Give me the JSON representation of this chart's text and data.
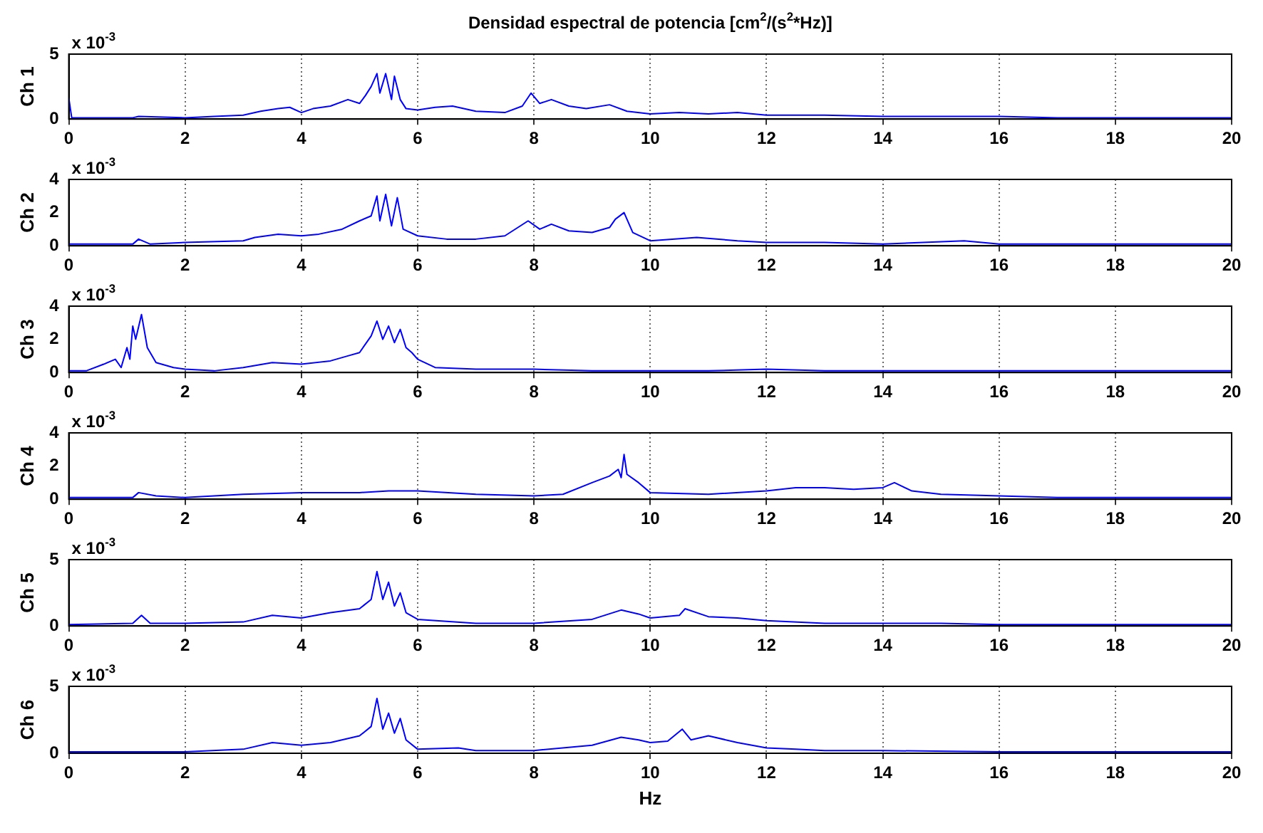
{
  "chart_data": [
    {
      "type": "line",
      "title": "Densidad espectral de potencia [cm$^{2}$/(s$^{2}$*Hz)]",
      "ylabel": "Ch 1",
      "annotations": [
        "x 10$^{-3}$"
      ],
      "color": "#0000ff",
      "xlim": [
        0,
        20
      ],
      "xticks": [
        0,
        2,
        4,
        6,
        8,
        10,
        12,
        14,
        16,
        18,
        20
      ],
      "ylim": [
        0,
        5
      ],
      "yticks": [
        0,
        5
      ],
      "grid": "x",
      "x": [
        0,
        0.05,
        1.1,
        1.2,
        2,
        2.5,
        3,
        3.3,
        3.6,
        3.8,
        4,
        4.2,
        4.5,
        4.8,
        5,
        5.1,
        5.2,
        5.3,
        5.35,
        5.45,
        5.55,
        5.6,
        5.7,
        5.8,
        6,
        6.3,
        6.6,
        7,
        7.5,
        7.8,
        7.95,
        8.1,
        8.3,
        8.6,
        8.9,
        9.3,
        9.6,
        10,
        10.5,
        11,
        11.5,
        12,
        13,
        14,
        15,
        16,
        17,
        18,
        19,
        20
      ],
      "values": [
        1.6,
        0.1,
        0.1,
        0.2,
        0.1,
        0.2,
        0.3,
        0.6,
        0.8,
        0.9,
        0.5,
        0.8,
        1.0,
        1.5,
        1.2,
        1.8,
        2.5,
        3.5,
        2.0,
        3.5,
        1.5,
        3.3,
        1.5,
        0.8,
        0.7,
        0.9,
        1.0,
        0.6,
        0.5,
        1.0,
        2.0,
        1.2,
        1.5,
        1.0,
        0.8,
        1.1,
        0.6,
        0.4,
        0.5,
        0.4,
        0.5,
        0.3,
        0.3,
        0.2,
        0.2,
        0.2,
        0.1,
        0.1,
        0.1,
        0.1
      ]
    },
    {
      "type": "line",
      "ylabel": "Ch 2",
      "annotations": [
        "x 10$^{-3}$"
      ],
      "color": "#0000ff",
      "xlim": [
        0,
        20
      ],
      "xticks": [
        0,
        2,
        4,
        6,
        8,
        10,
        12,
        14,
        16,
        18,
        20
      ],
      "ylim": [
        0,
        4
      ],
      "yticks": [
        0,
        2,
        4
      ],
      "grid": "x",
      "x": [
        0,
        1.1,
        1.2,
        1.4,
        2,
        3,
        3.2,
        3.6,
        4,
        4.3,
        4.7,
        5,
        5.2,
        5.3,
        5.35,
        5.45,
        5.55,
        5.65,
        5.75,
        6,
        6.5,
        7,
        7.5,
        7.9,
        8.1,
        8.3,
        8.6,
        9,
        9.3,
        9.4,
        9.55,
        9.7,
        10,
        10.8,
        11.5,
        12,
        13,
        14,
        15.4,
        15.7,
        16,
        17,
        18,
        20
      ],
      "values": [
        0.1,
        0.1,
        0.4,
        0.1,
        0.2,
        0.3,
        0.5,
        0.7,
        0.6,
        0.7,
        1.0,
        1.5,
        1.8,
        3.0,
        1.5,
        3.1,
        1.2,
        2.9,
        1.0,
        0.6,
        0.4,
        0.4,
        0.6,
        1.5,
        1.0,
        1.3,
        0.9,
        0.8,
        1.1,
        1.6,
        2.0,
        0.8,
        0.3,
        0.5,
        0.3,
        0.2,
        0.2,
        0.1,
        0.3,
        0.2,
        0.1,
        0.1,
        0.1,
        0.1
      ]
    },
    {
      "type": "line",
      "ylabel": "Ch 3",
      "annotations": [
        "x 10$^{-3}$"
      ],
      "color": "#0000ff",
      "xlim": [
        0,
        20
      ],
      "xticks": [
        0,
        2,
        4,
        6,
        8,
        10,
        12,
        14,
        16,
        18,
        20
      ],
      "ylim": [
        0,
        4
      ],
      "yticks": [
        0,
        2,
        4
      ],
      "grid": "x",
      "x": [
        0,
        0.3,
        0.6,
        0.8,
        0.9,
        1.0,
        1.05,
        1.1,
        1.15,
        1.25,
        1.35,
        1.5,
        1.8,
        2,
        2.5,
        3,
        3.5,
        4,
        4.5,
        4.8,
        5,
        5.2,
        5.3,
        5.4,
        5.5,
        5.6,
        5.7,
        5.8,
        5.9,
        6,
        6.3,
        7,
        8,
        9,
        10,
        11,
        12,
        13,
        14,
        16,
        18,
        20
      ],
      "values": [
        0.1,
        0.1,
        0.5,
        0.8,
        0.3,
        1.5,
        0.8,
        2.8,
        2.0,
        3.5,
        1.5,
        0.6,
        0.3,
        0.2,
        0.1,
        0.3,
        0.6,
        0.5,
        0.7,
        1.0,
        1.2,
        2.2,
        3.1,
        2.0,
        2.8,
        1.8,
        2.6,
        1.5,
        1.2,
        0.8,
        0.3,
        0.2,
        0.2,
        0.1,
        0.1,
        0.1,
        0.2,
        0.1,
        0.1,
        0.1,
        0.1,
        0.1
      ]
    },
    {
      "type": "line",
      "ylabel": "Ch 4",
      "annotations": [
        "x 10$^{-3}$"
      ],
      "color": "#0000ff",
      "xlim": [
        0,
        20
      ],
      "xticks": [
        0,
        2,
        4,
        6,
        8,
        10,
        12,
        14,
        16,
        18,
        20
      ],
      "ylim": [
        0,
        4
      ],
      "yticks": [
        0,
        2,
        4
      ],
      "grid": "x",
      "x": [
        0,
        1.1,
        1.2,
        1.5,
        2,
        3,
        4,
        5,
        5.5,
        6,
        7,
        8,
        8.5,
        9,
        9.3,
        9.45,
        9.5,
        9.55,
        9.6,
        9.8,
        10,
        11,
        12,
        12.5,
        13,
        13.5,
        14,
        14.2,
        14.5,
        15,
        16,
        17,
        18,
        19,
        20
      ],
      "values": [
        0.1,
        0.1,
        0.4,
        0.2,
        0.1,
        0.3,
        0.4,
        0.4,
        0.5,
        0.5,
        0.3,
        0.2,
        0.3,
        1.0,
        1.4,
        1.8,
        1.3,
        2.7,
        1.5,
        1.0,
        0.4,
        0.3,
        0.5,
        0.7,
        0.7,
        0.6,
        0.7,
        1.0,
        0.5,
        0.3,
        0.2,
        0.1,
        0.1,
        0.1,
        0.1
      ]
    },
    {
      "type": "line",
      "ylabel": "Ch 5",
      "annotations": [
        "x 10$^{-3}$"
      ],
      "color": "#0000ff",
      "xlim": [
        0,
        20
      ],
      "xticks": [
        0,
        2,
        4,
        6,
        8,
        10,
        12,
        14,
        16,
        18,
        20
      ],
      "ylim": [
        0,
        5
      ],
      "yticks": [
        0,
        5
      ],
      "grid": "x",
      "x": [
        0,
        1.1,
        1.25,
        1.4,
        2,
        3,
        3.5,
        4,
        4.5,
        5,
        5.2,
        5.3,
        5.4,
        5.5,
        5.6,
        5.7,
        5.8,
        6,
        7,
        8,
        9,
        9.5,
        9.8,
        10,
        10.5,
        10.6,
        11,
        11.5,
        12,
        13,
        14,
        15,
        16,
        18,
        20
      ],
      "values": [
        0.1,
        0.2,
        0.8,
        0.2,
        0.2,
        0.3,
        0.8,
        0.6,
        1.0,
        1.3,
        2.0,
        4.1,
        2.0,
        3.3,
        1.5,
        2.5,
        1.0,
        0.5,
        0.2,
        0.2,
        0.5,
        1.2,
        0.9,
        0.6,
        0.8,
        1.3,
        0.7,
        0.6,
        0.4,
        0.2,
        0.2,
        0.2,
        0.1,
        0.1,
        0.1
      ]
    },
    {
      "type": "line",
      "ylabel": "Ch 6",
      "xlabel": "Hz",
      "annotations": [
        "x 10$^{-3}$"
      ],
      "color": "#0000ff",
      "xlim": [
        0,
        20
      ],
      "xticks": [
        0,
        2,
        4,
        6,
        8,
        10,
        12,
        14,
        16,
        18,
        20
      ],
      "ylim": [
        0,
        5
      ],
      "yticks": [
        0,
        5
      ],
      "grid": "x",
      "x": [
        0,
        1,
        2,
        3,
        3.5,
        4,
        4.5,
        5,
        5.2,
        5.3,
        5.4,
        5.5,
        5.6,
        5.7,
        5.8,
        6,
        6.7,
        7,
        8,
        9,
        9.5,
        9.8,
        10,
        10.3,
        10.55,
        10.7,
        11,
        11.5,
        12,
        12.5,
        13,
        14,
        16,
        18,
        20
      ],
      "values": [
        0.1,
        0.1,
        0.1,
        0.3,
        0.8,
        0.6,
        0.8,
        1.3,
        2.0,
        4.1,
        1.8,
        3.0,
        1.5,
        2.6,
        1.0,
        0.3,
        0.4,
        0.2,
        0.2,
        0.6,
        1.2,
        1.0,
        0.8,
        0.9,
        1.8,
        1.0,
        1.3,
        0.8,
        0.4,
        0.3,
        0.2,
        0.2,
        0.1,
        0.1,
        0.1
      ]
    }
  ]
}
